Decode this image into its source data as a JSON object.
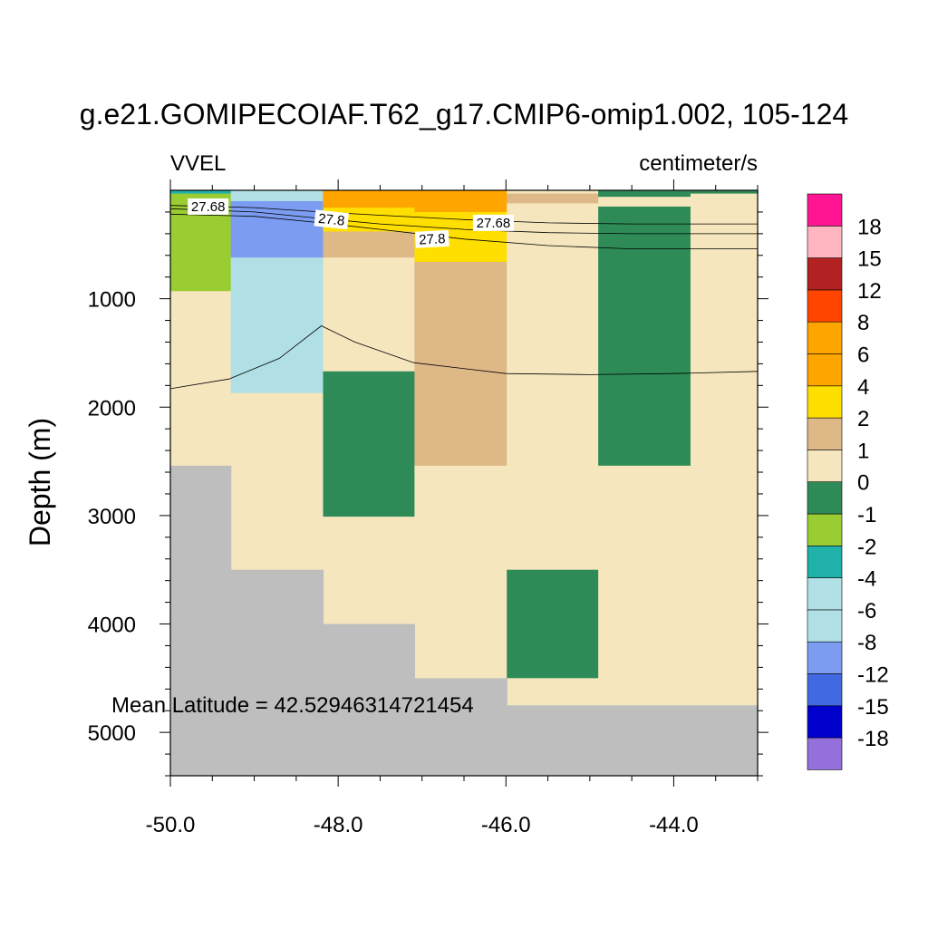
{
  "chart_data": {
    "type": "heatmap",
    "title": "g.e21.GOMIPECOIAF.T62_g17.CMIP6-omip1.002, 105-124",
    "left_label": "VVEL",
    "right_label": "centimeter/s",
    "ylabel": "Depth (m)",
    "xlabel": "",
    "annotation": "Mean Latitude = 42.52946314721454",
    "xlim": [
      -50.0,
      -43.0
    ],
    "ylim": [
      0,
      5400
    ],
    "y_reversed": true,
    "x_ticks": [
      -50.0,
      -48.0,
      -46.0,
      -44.0
    ],
    "x_tick_labels": [
      "-50.0",
      "-48.0",
      "-46.0",
      "-44.0"
    ],
    "y_ticks": [
      1000,
      2000,
      3000,
      4000,
      5000
    ],
    "y_tick_labels": [
      "1000",
      "2000",
      "3000",
      "4000",
      "5000"
    ],
    "land_color": "#bebebe",
    "levels": [
      -18,
      -15,
      -12,
      -8,
      -6,
      -4,
      -2,
      -1,
      0,
      1,
      2,
      4,
      6,
      8,
      12,
      15,
      18
    ],
    "level_labels": [
      "-18",
      "-15",
      "-12",
      "-8",
      "-6",
      "-4",
      "-2",
      "-1",
      "0",
      "1",
      "2",
      "4",
      "6",
      "8",
      "12",
      "15",
      "18"
    ],
    "colors": [
      "#9370db",
      "#0000cd",
      "#4169e1",
      "#7b9cf0",
      "#b0e0e6",
      "#b0e0e6",
      "#20b2aa",
      "#9acd32",
      "#2e8b57",
      "#f5e6bd",
      "#deb887",
      "#ffdf00",
      "#ffa500",
      "#ffa500",
      "#ff4500",
      "#b22222",
      "#ffb6c1",
      "#ff1493"
    ],
    "cells": [
      {
        "x0": -50.0,
        "x1": -49.28,
        "d0": 0,
        "d1": 30,
        "bin": 6
      },
      {
        "x0": -50.0,
        "x1": -49.28,
        "d0": 30,
        "d1": 930,
        "bin": 7
      },
      {
        "x0": -50.0,
        "x1": -49.28,
        "d0": 930,
        "d1": 2540,
        "bin": 9
      },
      {
        "x0": -49.28,
        "x1": -48.18,
        "d0": 0,
        "d1": 100,
        "bin": 4
      },
      {
        "x0": -49.28,
        "x1": -48.18,
        "d0": 100,
        "d1": 620,
        "bin": 3
      },
      {
        "x0": -49.28,
        "x1": -48.18,
        "d0": 620,
        "d1": 1870,
        "bin": 4
      },
      {
        "x0": -49.28,
        "x1": -48.18,
        "d0": 1870,
        "d1": 3500,
        "bin": 9
      },
      {
        "x0": -48.18,
        "x1": -47.09,
        "d0": 0,
        "d1": 160,
        "bin": 12
      },
      {
        "x0": -48.18,
        "x1": -47.09,
        "d0": 160,
        "d1": 380,
        "bin": 11
      },
      {
        "x0": -48.18,
        "x1": -47.09,
        "d0": 380,
        "d1": 620,
        "bin": 10
      },
      {
        "x0": -48.18,
        "x1": -47.09,
        "d0": 620,
        "d1": 1670,
        "bin": 9
      },
      {
        "x0": -48.18,
        "x1": -47.09,
        "d0": 1670,
        "d1": 3010,
        "bin": 8
      },
      {
        "x0": -48.18,
        "x1": -47.09,
        "d0": 3010,
        "d1": 4000,
        "bin": 9
      },
      {
        "x0": -47.09,
        "x1": -45.99,
        "d0": 0,
        "d1": 200,
        "bin": 12
      },
      {
        "x0": -47.09,
        "x1": -45.99,
        "d0": 200,
        "d1": 660,
        "bin": 11
      },
      {
        "x0": -47.09,
        "x1": -45.99,
        "d0": 660,
        "d1": 2540,
        "bin": 10
      },
      {
        "x0": -47.09,
        "x1": -45.99,
        "d0": 2540,
        "d1": 4500,
        "bin": 9
      },
      {
        "x0": -45.99,
        "x1": -44.9,
        "d0": 0,
        "d1": 30,
        "bin": 9
      },
      {
        "x0": -45.99,
        "x1": -44.9,
        "d0": 30,
        "d1": 120,
        "bin": 10
      },
      {
        "x0": -45.99,
        "x1": -44.9,
        "d0": 120,
        "d1": 3500,
        "bin": 9
      },
      {
        "x0": -45.99,
        "x1": -44.9,
        "d0": 3500,
        "d1": 4500,
        "bin": 8
      },
      {
        "x0": -45.99,
        "x1": -44.9,
        "d0": 4500,
        "d1": 4750,
        "bin": 9
      },
      {
        "x0": -44.9,
        "x1": -43.8,
        "d0": 0,
        "d1": 60,
        "bin": 8
      },
      {
        "x0": -44.9,
        "x1": -43.8,
        "d0": 60,
        "d1": 150,
        "bin": 9
      },
      {
        "x0": -44.9,
        "x1": -43.8,
        "d0": 150,
        "d1": 2540,
        "bin": 8
      },
      {
        "x0": -44.9,
        "x1": -43.8,
        "d0": 2540,
        "d1": 4750,
        "bin": 9
      },
      {
        "x0": -43.8,
        "x1": -43.0,
        "d0": 0,
        "d1": 30,
        "bin": 8
      },
      {
        "x0": -43.8,
        "x1": -43.0,
        "d0": 30,
        "d1": 4750,
        "bin": 9
      }
    ],
    "land": [
      {
        "x0": -50.0,
        "x1": -49.28,
        "d0": 2540,
        "d1": 5400
      },
      {
        "x0": -49.28,
        "x1": -48.18,
        "d0": 3500,
        "d1": 5400
      },
      {
        "x0": -48.18,
        "x1": -47.09,
        "d0": 4000,
        "d1": 5400
      },
      {
        "x0": -47.09,
        "x1": -45.99,
        "d0": 4500,
        "d1": 5400
      },
      {
        "x0": -45.99,
        "x1": -43.0,
        "d0": 4750,
        "d1": 5400
      }
    ],
    "contours": [
      {
        "points": [
          [
            -50.0,
            140
          ],
          [
            -49.0,
            160
          ],
          [
            -48.2,
            200
          ],
          [
            -47.5,
            230
          ],
          [
            -46.5,
            270
          ],
          [
            -45.5,
            300
          ],
          [
            -44.5,
            310
          ],
          [
            -43.0,
            310
          ]
        ]
      },
      {
        "points": [
          [
            -50.0,
            170
          ],
          [
            -49.0,
            200
          ],
          [
            -48.2,
            260
          ],
          [
            -47.5,
            310
          ],
          [
            -46.5,
            360
          ],
          [
            -45.5,
            390
          ],
          [
            -44.5,
            400
          ],
          [
            -43.0,
            400
          ]
        ]
      },
      {
        "points": [
          [
            -50.0,
            220
          ],
          [
            -49.0,
            240
          ],
          [
            -48.2,
            300
          ],
          [
            -47.5,
            360
          ],
          [
            -46.5,
            450
          ],
          [
            -45.5,
            510
          ],
          [
            -44.5,
            540
          ],
          [
            -43.0,
            540
          ]
        ]
      },
      {
        "points": [
          [
            -50.0,
            1830
          ],
          [
            -49.3,
            1740
          ],
          [
            -48.7,
            1550
          ],
          [
            -48.2,
            1250
          ],
          [
            -47.8,
            1400
          ],
          [
            -47.1,
            1590
          ],
          [
            -46.0,
            1690
          ],
          [
            -45.0,
            1700
          ],
          [
            -44.0,
            1690
          ],
          [
            -43.0,
            1670
          ]
        ]
      }
    ],
    "contour_labels": [
      {
        "text": "27.68",
        "x": -49.55,
        "d": 150,
        "angle": 0
      },
      {
        "text": "27.8",
        "x": -48.08,
        "d": 270,
        "angle": 6
      },
      {
        "text": "27.68",
        "x": -46.15,
        "d": 300,
        "angle": 0
      },
      {
        "text": "27.8",
        "x": -46.88,
        "d": 450,
        "angle": -3
      }
    ]
  }
}
